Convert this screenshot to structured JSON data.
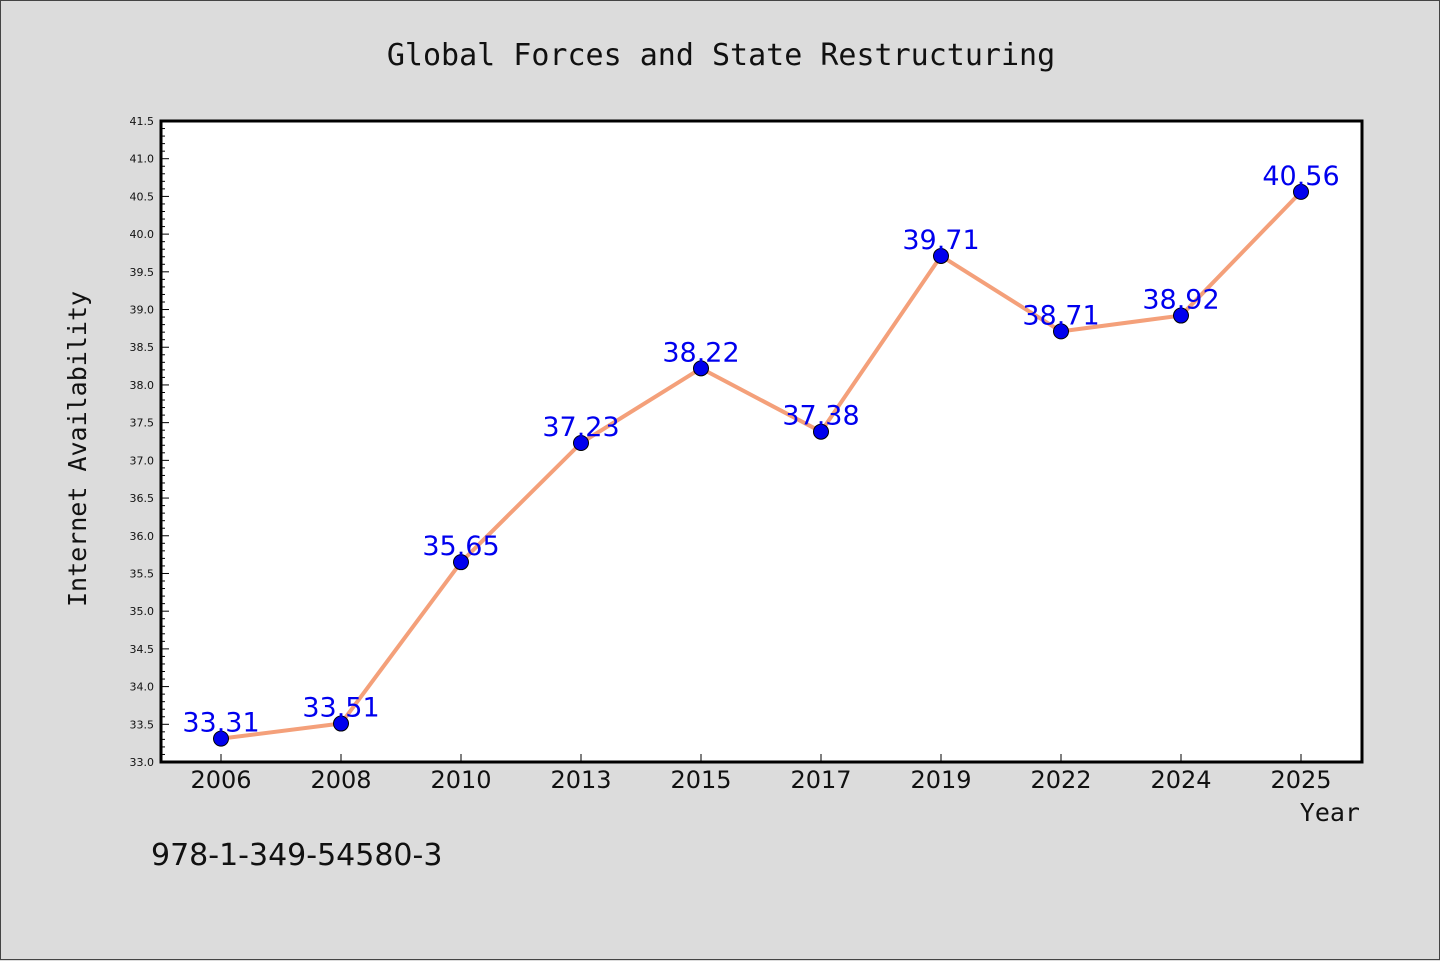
{
  "chart_data": {
    "type": "line",
    "title": "Global Forces and State Restructuring",
    "xlabel": "Year",
    "ylabel": "Internet Availability",
    "categories": [
      "2006",
      "2008",
      "2010",
      "2013",
      "2015",
      "2017",
      "2019",
      "2022",
      "2024",
      "2025"
    ],
    "series": [
      {
        "values": [
          33.31,
          33.51,
          35.65,
          37.23,
          38.22,
          37.38,
          39.71,
          38.71,
          38.92,
          40.56
        ]
      }
    ],
    "data_labels": [
      "33.31",
      "33.51",
      "35.65",
      "37.23",
      "38.22",
      "37.38",
      "39.71",
      "38.71",
      "38.92",
      "40.56"
    ],
    "ylim": [
      33.0,
      41.5
    ],
    "ytick_step": 0.5,
    "grid": false,
    "legend": "none",
    "colors": {
      "line": "#f4a07a",
      "marker": "#0000ee",
      "data_label": "#0000ee",
      "plot_background": "#ffffff",
      "figure_background": "#dcdcdc"
    }
  },
  "annotation": "978-1-349-54580-3"
}
